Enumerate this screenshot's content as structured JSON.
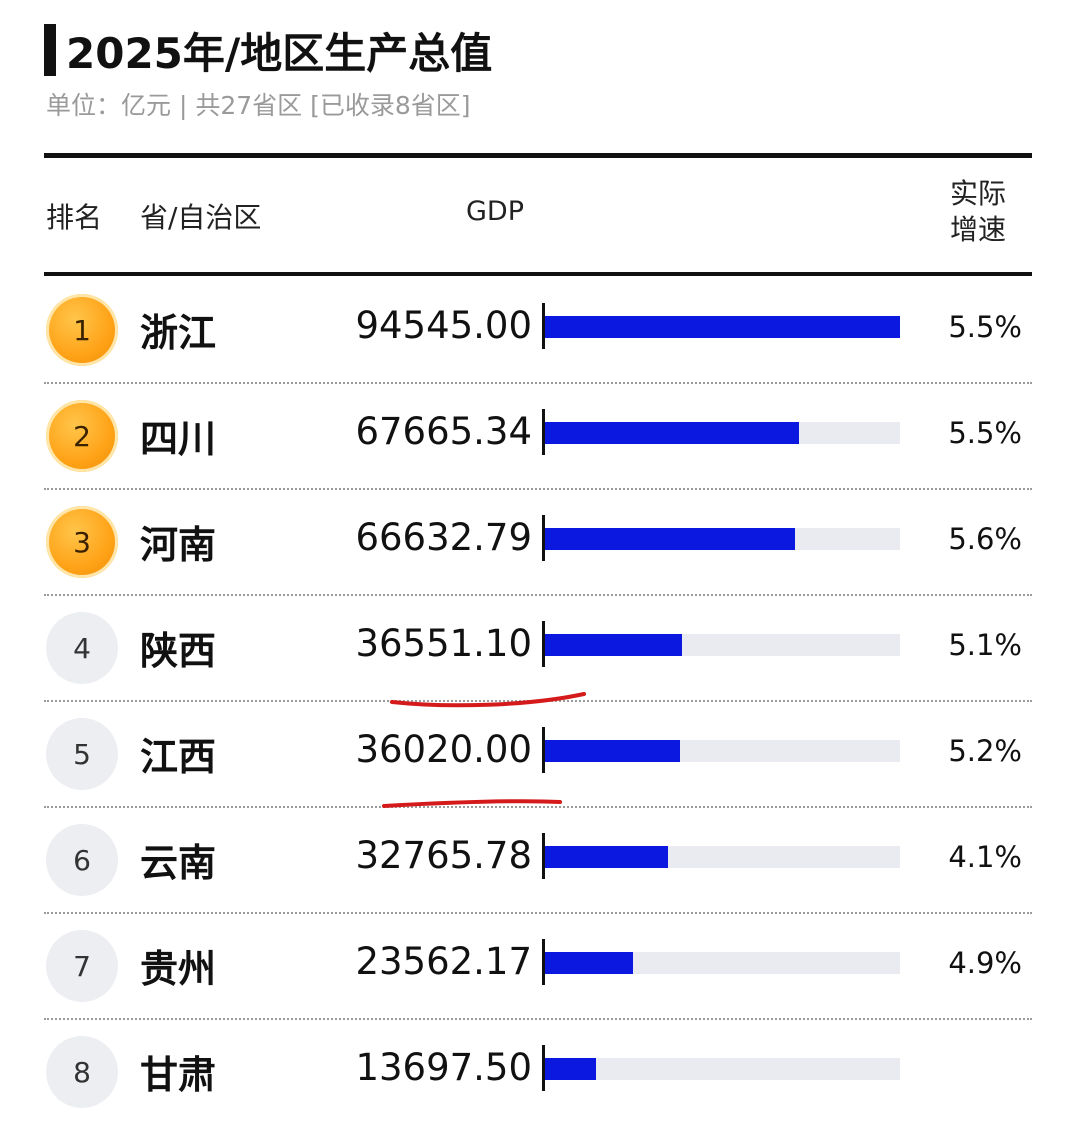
{
  "header": {
    "title": "2025年/地区生产总值",
    "subtitle": "单位：亿元 | 共27省区 [已收录8省区]"
  },
  "columns": {
    "rank": "排名",
    "province": "省/自治区",
    "gdp": "GDP",
    "growth": "实际增速"
  },
  "chart_data": {
    "type": "bar",
    "title": "2025年/地区生产总值",
    "subtitle": "单位：亿元 | 共27省区 [已收录8省区]",
    "xlabel": "",
    "ylabel": "GDP",
    "xlim": [
      0,
      94545
    ],
    "grid": false,
    "rows": [
      {
        "rank": "1",
        "province": "浙江",
        "gdp": "94545.00",
        "value": 94545.0,
        "growth": "5.5%",
        "highlight": true
      },
      {
        "rank": "2",
        "province": "四川",
        "gdp": "67665.34",
        "value": 67665.34,
        "growth": "5.5%",
        "highlight": true
      },
      {
        "rank": "3",
        "province": "河南",
        "gdp": "66632.79",
        "value": 66632.79,
        "growth": "5.6%",
        "highlight": true
      },
      {
        "rank": "4",
        "province": "陕西",
        "gdp": "36551.10",
        "value": 36551.1,
        "growth": "5.1%",
        "highlight": false
      },
      {
        "rank": "5",
        "province": "江西",
        "gdp": "36020.00",
        "value": 36020.0,
        "growth": "5.2%",
        "highlight": false
      },
      {
        "rank": "6",
        "province": "云南",
        "gdp": "32765.78",
        "value": 32765.78,
        "growth": "4.1%",
        "highlight": false
      },
      {
        "rank": "7",
        "province": "贵州",
        "gdp": "23562.17",
        "value": 23562.17,
        "growth": "4.9%",
        "highlight": false
      },
      {
        "rank": "8",
        "province": "甘肃",
        "gdp": "13697.50",
        "value": 13697.5,
        "growth": "",
        "highlight": false
      }
    ]
  },
  "colors": {
    "bar": "#0a18e0",
    "track": "#e9ebf1",
    "gold": "#ffa41a",
    "annotation": "#d41a1a"
  },
  "annotations": {
    "underlined_ranks": [
      "4",
      "5"
    ]
  }
}
